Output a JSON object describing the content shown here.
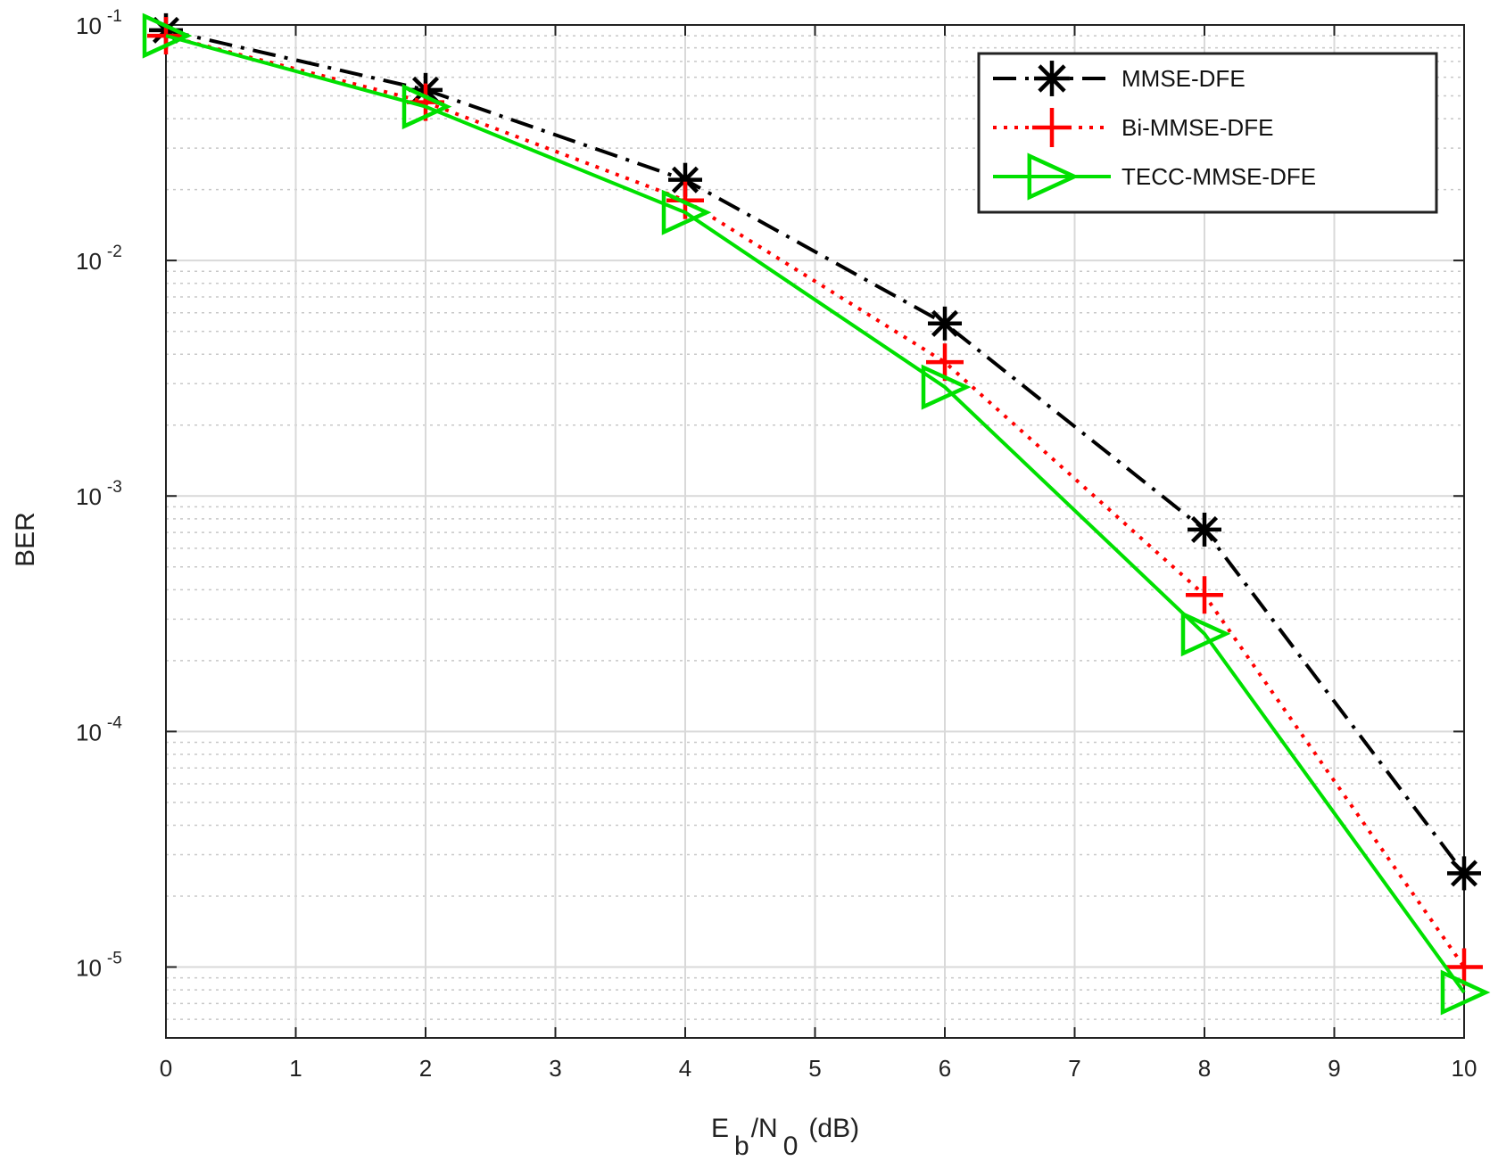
{
  "chart_data": {
    "type": "line",
    "title": "",
    "xlabel": {
      "main": "E",
      "sub1": "b",
      "mid": "/N",
      "sub2": "0",
      "tail": "(dB)"
    },
    "ylabel": "BER",
    "xlim": [
      0,
      10
    ],
    "ylim": [
      5e-06,
      0.1
    ],
    "yscale": "log",
    "grid": true,
    "legend_position": "top-right",
    "x_ticks": [
      "0",
      "1",
      "2",
      "3",
      "4",
      "5",
      "6",
      "7",
      "8",
      "9",
      "10"
    ],
    "y_ticks": [
      {
        "base": "10",
        "exp": "-1",
        "value": 0.1
      },
      {
        "base": "10",
        "exp": "-2",
        "value": 0.01
      },
      {
        "base": "10",
        "exp": "-3",
        "value": 0.001
      },
      {
        "base": "10",
        "exp": "-4",
        "value": 0.0001
      },
      {
        "base": "10",
        "exp": "-5",
        "value": 1e-05
      }
    ],
    "x": [
      0,
      2,
      4,
      6,
      8,
      10
    ],
    "series": [
      {
        "name": "MMSE-DFE",
        "color": "#000000",
        "marker": "asterisk",
        "line": "dash-dot",
        "values": [
          0.095,
          0.053,
          0.022,
          0.0054,
          0.00072,
          2.5e-05
        ]
      },
      {
        "name": "Bi-MMSE-DFE",
        "color": "#ff0000",
        "marker": "plus",
        "line": "dotted",
        "values": [
          0.09,
          0.047,
          0.018,
          0.0037,
          0.00038,
          1e-05
        ]
      },
      {
        "name": "TECC-MMSE-DFE",
        "color": "#00e000",
        "marker": "triangle-right",
        "line": "solid",
        "values": [
          0.09,
          0.045,
          0.016,
          0.0029,
          0.00026,
          7.8e-06
        ]
      }
    ]
  }
}
